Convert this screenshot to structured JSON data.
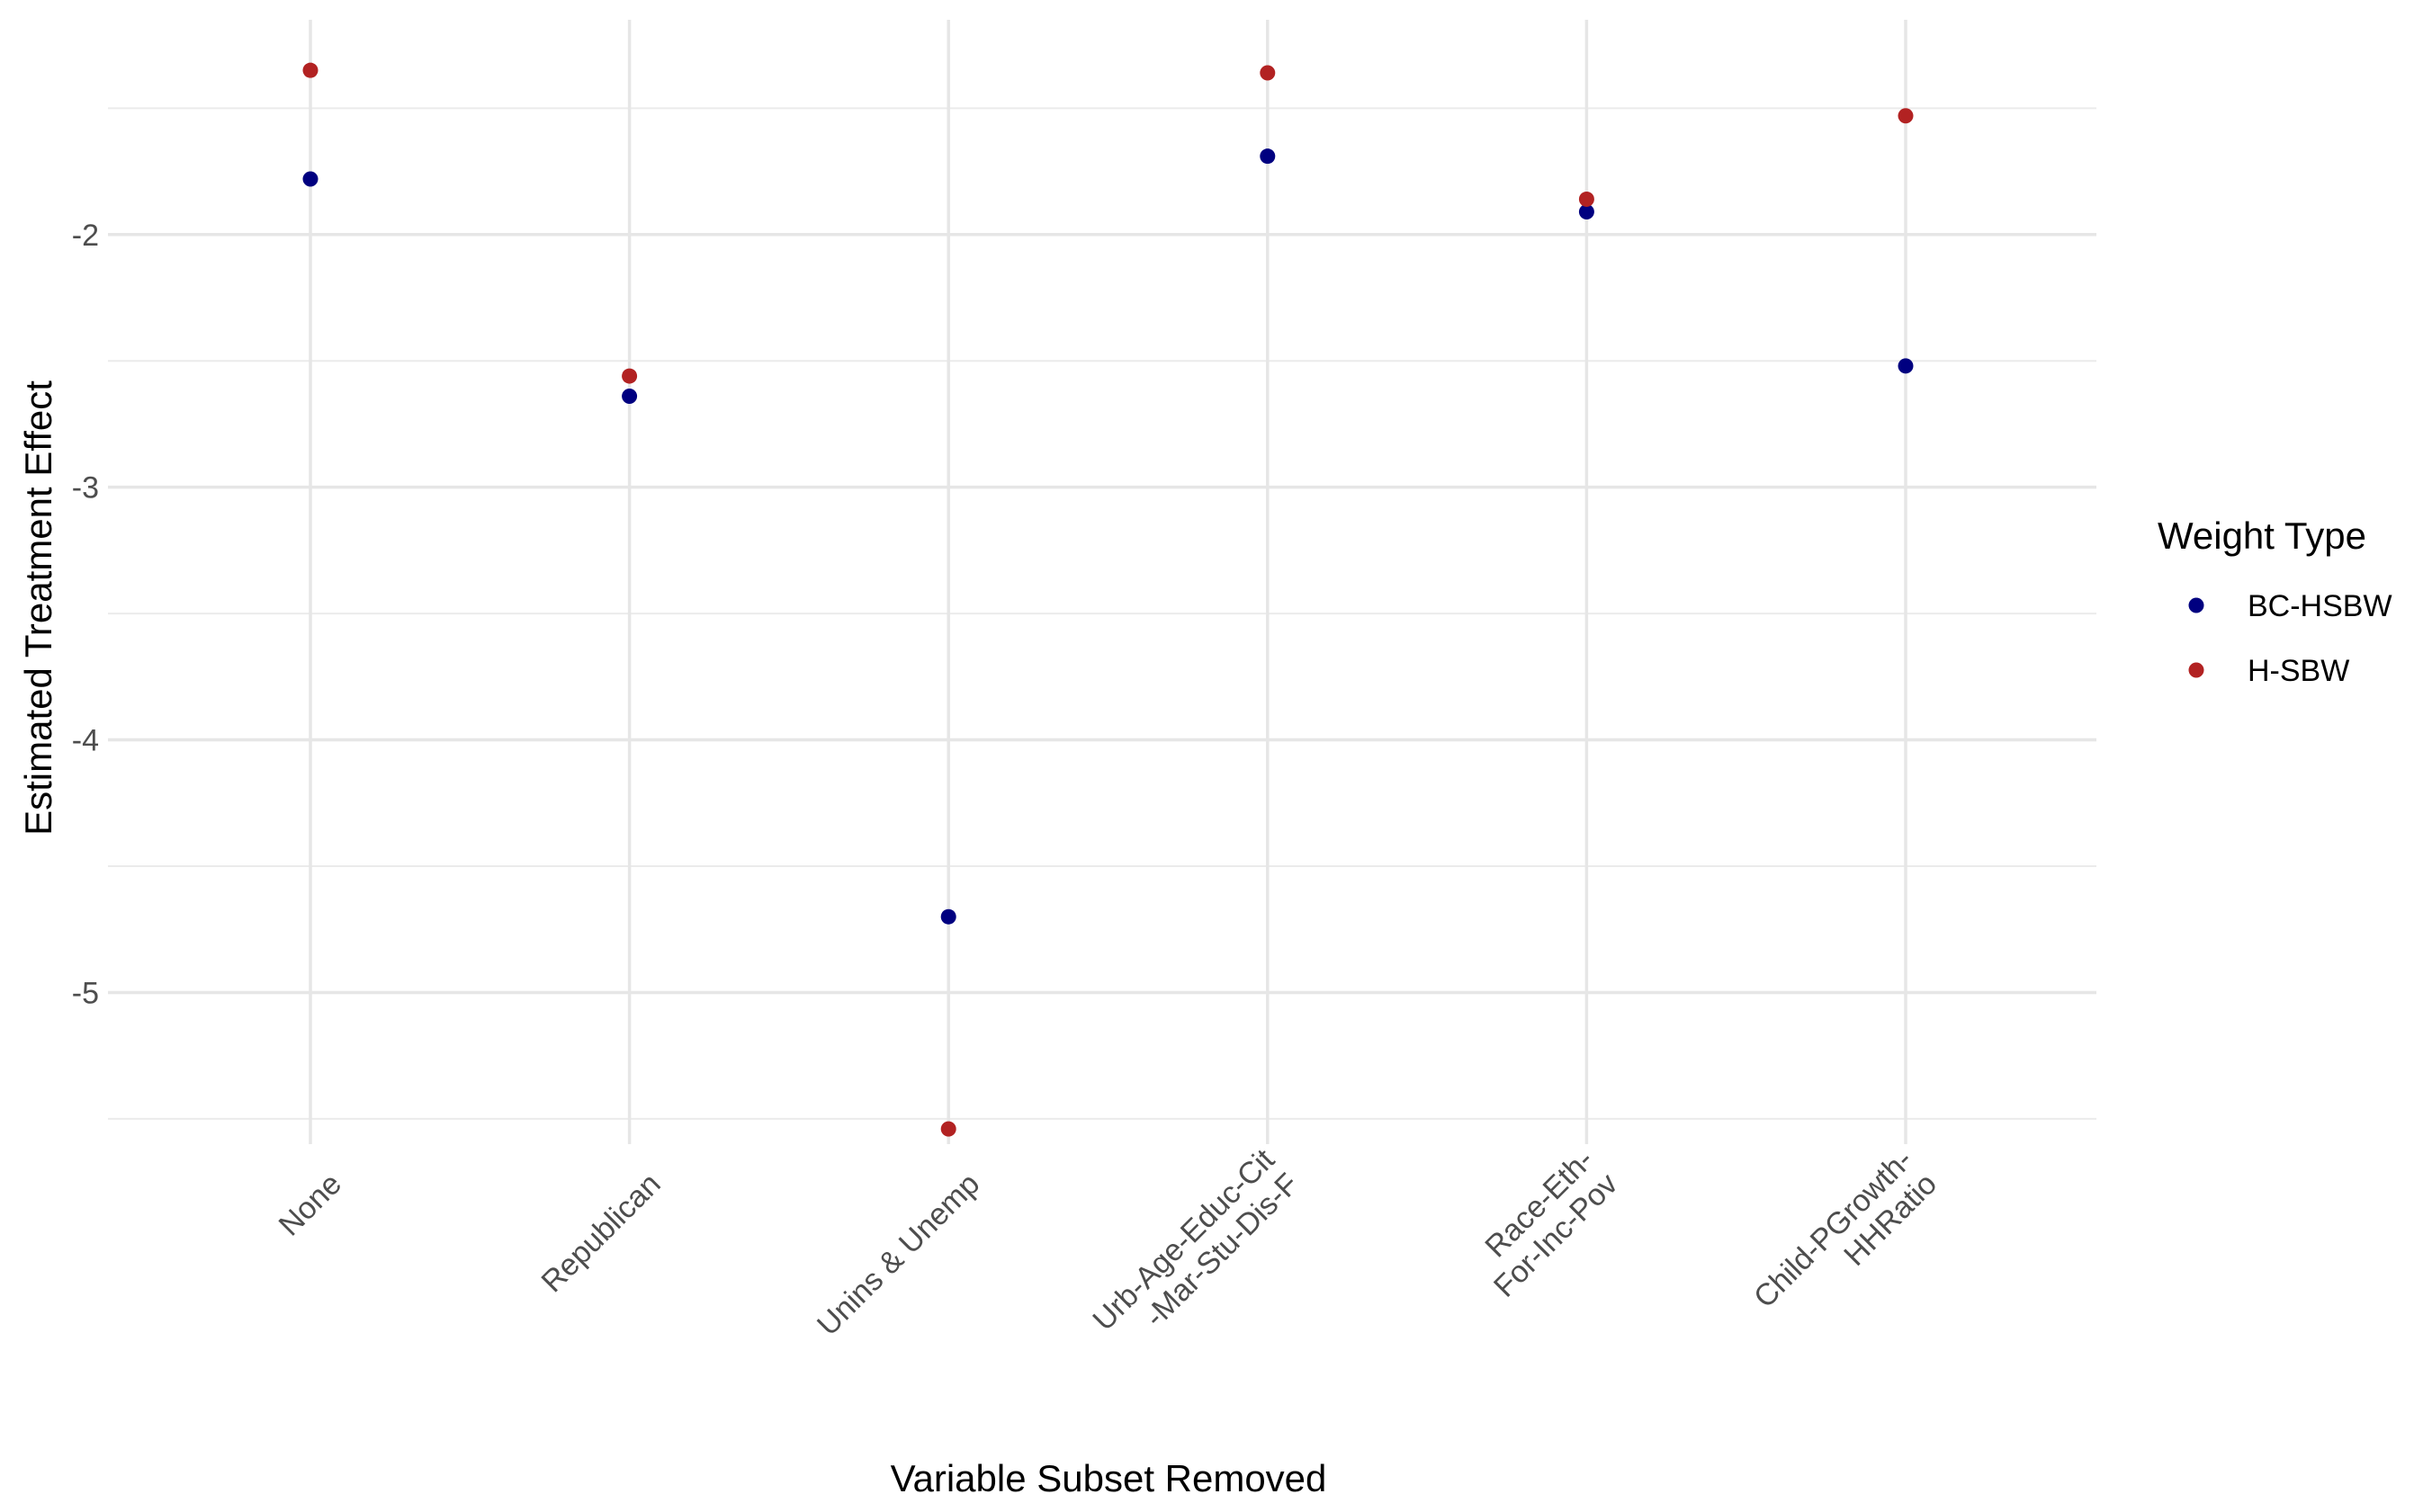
{
  "chart_data": {
    "type": "scatter",
    "title": "",
    "xlabel": "Variable Subset Removed",
    "ylabel": "Estimated Treatment Effect",
    "categories": [
      [
        "None"
      ],
      [
        "Republican"
      ],
      [
        "Unins & Unemp"
      ],
      [
        "Urb-Age-Educ-Cit",
        "-Mar-Stu-Dis-F"
      ],
      [
        "Race-Eth-",
        "For-Inc-Pov"
      ],
      [
        "Child-PGrowth-",
        "HHRatio"
      ]
    ],
    "series": [
      {
        "name": "BC-HSBW",
        "color": "#000080",
        "values": [
          -1.78,
          -2.64,
          -4.7,
          -1.69,
          -1.91,
          -2.52
        ]
      },
      {
        "name": "H-SBW",
        "color": "#B22222",
        "values": [
          -1.35,
          -2.56,
          -5.54,
          -1.36,
          -1.86,
          -1.53
        ]
      }
    ],
    "ylim": [
      -5.6,
      -1.15
    ],
    "yticks": [
      -5,
      -4,
      -3,
      -2
    ],
    "ytick_labels": [
      "-5",
      "-4",
      "-3",
      "-2"
    ],
    "grid": true,
    "legend": {
      "title": "Weight Type",
      "position": "right"
    }
  }
}
